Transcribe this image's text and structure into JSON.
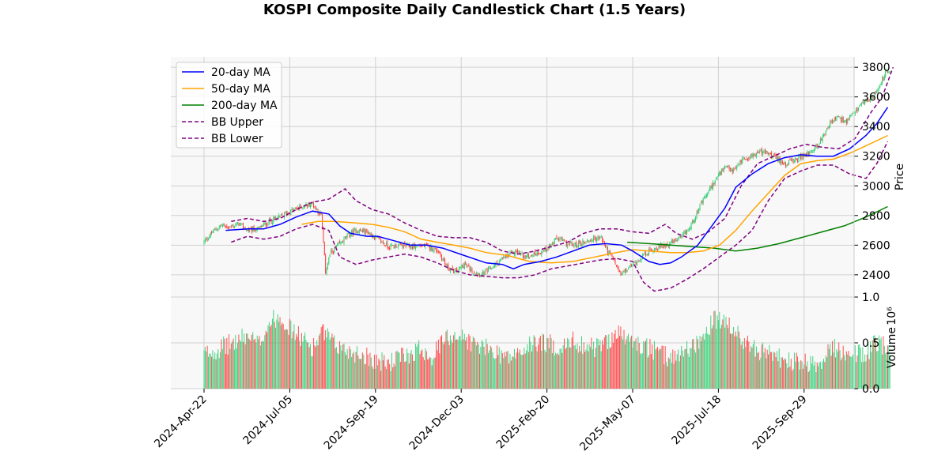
{
  "chart_data": {
    "type": "candlestick",
    "title": "KOSPI Composite Daily Candlestick Chart (1.5 Years)",
    "price_panel": {
      "ylabel": "Price",
      "ylim": [
        2250,
        3870
      ],
      "yticks": [
        2400,
        2600,
        2800,
        3000,
        3200,
        3400,
        3600,
        3800
      ]
    },
    "volume_panel": {
      "ylabel": "Volume",
      "scale_label": "10⁶",
      "ylim": [
        0,
        1.0
      ],
      "yticks": [
        0.0,
        0.5,
        1.0
      ]
    },
    "x_ticks": [
      "2024-Apr-22",
      "2024-Jul-05",
      "2024-Sep-19",
      "2024-Dec-03",
      "2025-Feb-20",
      "2025-May-07",
      "2025-Jul-18",
      "2025-Sep-29"
    ],
    "legend_placement": "top-left",
    "grid": true,
    "colors": {
      "up": "#2ecc71",
      "down": "#ff3b3b",
      "ma20": "#0000ff",
      "ma50": "#ffa500",
      "ma200": "#008000",
      "bb": "#800080",
      "panel_bg": "#f8f8f8",
      "grid": "#d0d0d0"
    },
    "series": [
      {
        "name": "20-day MA",
        "color": "#0000ff",
        "style": "solid"
      },
      {
        "name": "50-day MA",
        "color": "#ffa500",
        "style": "solid"
      },
      {
        "name": "200-day MA",
        "color": "#008000",
        "style": "solid"
      },
      {
        "name": "BB Upper",
        "color": "#800080",
        "style": "dashed"
      },
      {
        "name": "BB Lower",
        "color": "#800080",
        "style": "dashed"
      }
    ],
    "close_path": [
      [
        0,
        2620
      ],
      [
        8,
        2690
      ],
      [
        16,
        2735
      ],
      [
        24,
        2720
      ],
      [
        32,
        2745
      ],
      [
        40,
        2700
      ],
      [
        50,
        2710
      ],
      [
        60,
        2760
      ],
      [
        70,
        2790
      ],
      [
        80,
        2830
      ],
      [
        90,
        2860
      ],
      [
        100,
        2880
      ],
      [
        108,
        2800
      ],
      [
        112,
        2420
      ],
      [
        116,
        2540
      ],
      [
        124,
        2600
      ],
      [
        132,
        2660
      ],
      [
        140,
        2700
      ],
      [
        150,
        2690
      ],
      [
        160,
        2640
      ],
      [
        170,
        2590
      ],
      [
        180,
        2600
      ],
      [
        190,
        2590
      ],
      [
        200,
        2600
      ],
      [
        210,
        2580
      ],
      [
        216,
        2560
      ],
      [
        224,
        2450
      ],
      [
        232,
        2420
      ],
      [
        240,
        2470
      ],
      [
        248,
        2420
      ],
      [
        256,
        2400
      ],
      [
        264,
        2440
      ],
      [
        272,
        2490
      ],
      [
        280,
        2530
      ],
      [
        288,
        2560
      ],
      [
        296,
        2520
      ],
      [
        304,
        2540
      ],
      [
        312,
        2560
      ],
      [
        320,
        2600
      ],
      [
        326,
        2650
      ],
      [
        334,
        2610
      ],
      [
        342,
        2600
      ],
      [
        350,
        2620
      ],
      [
        358,
        2640
      ],
      [
        366,
        2650
      ],
      [
        372,
        2560
      ],
      [
        378,
        2490
      ],
      [
        384,
        2400
      ],
      [
        392,
        2450
      ],
      [
        400,
        2500
      ],
      [
        408,
        2550
      ],
      [
        416,
        2580
      ],
      [
        424,
        2600
      ],
      [
        432,
        2620
      ],
      [
        440,
        2650
      ],
      [
        448,
        2720
      ],
      [
        456,
        2850
      ],
      [
        464,
        2950
      ],
      [
        472,
        3050
      ],
      [
        480,
        3120
      ],
      [
        488,
        3100
      ],
      [
        496,
        3180
      ],
      [
        504,
        3200
      ],
      [
        512,
        3230
      ],
      [
        520,
        3220
      ],
      [
        528,
        3180
      ],
      [
        536,
        3150
      ],
      [
        544,
        3170
      ],
      [
        552,
        3200
      ],
      [
        560,
        3230
      ],
      [
        568,
        3300
      ],
      [
        576,
        3420
      ],
      [
        584,
        3460
      ],
      [
        592,
        3430
      ],
      [
        600,
        3500
      ],
      [
        608,
        3560
      ],
      [
        616,
        3600
      ],
      [
        624,
        3700
      ],
      [
        628,
        3760
      ]
    ],
    "ma20": [
      [
        20,
        2700
      ],
      [
        40,
        2710
      ],
      [
        55,
        2710
      ],
      [
        70,
        2740
      ],
      [
        85,
        2790
      ],
      [
        100,
        2830
      ],
      [
        115,
        2810
      ],
      [
        125,
        2730
      ],
      [
        135,
        2680
      ],
      [
        150,
        2660
      ],
      [
        160,
        2660
      ],
      [
        175,
        2630
      ],
      [
        190,
        2600
      ],
      [
        205,
        2600
      ],
      [
        220,
        2580
      ],
      [
        240,
        2530
      ],
      [
        260,
        2480
      ],
      [
        275,
        2470
      ],
      [
        285,
        2440
      ],
      [
        295,
        2470
      ],
      [
        310,
        2490
      ],
      [
        325,
        2520
      ],
      [
        340,
        2560
      ],
      [
        355,
        2600
      ],
      [
        370,
        2610
      ],
      [
        385,
        2600
      ],
      [
        395,
        2560
      ],
      [
        410,
        2490
      ],
      [
        420,
        2470
      ],
      [
        430,
        2480
      ],
      [
        440,
        2520
      ],
      [
        455,
        2600
      ],
      [
        470,
        2750
      ],
      [
        480,
        2850
      ],
      [
        490,
        2990
      ],
      [
        505,
        3080
      ],
      [
        520,
        3150
      ],
      [
        535,
        3190
      ],
      [
        550,
        3210
      ],
      [
        565,
        3200
      ],
      [
        580,
        3200
      ],
      [
        595,
        3250
      ],
      [
        610,
        3340
      ],
      [
        620,
        3420
      ],
      [
        630,
        3530
      ]
    ],
    "ma50": [
      [
        90,
        2740
      ],
      [
        105,
        2760
      ],
      [
        120,
        2760
      ],
      [
        140,
        2750
      ],
      [
        155,
        2740
      ],
      [
        170,
        2720
      ],
      [
        185,
        2690
      ],
      [
        200,
        2640
      ],
      [
        215,
        2620
      ],
      [
        230,
        2600
      ],
      [
        245,
        2580
      ],
      [
        260,
        2550
      ],
      [
        280,
        2530
      ],
      [
        300,
        2490
      ],
      [
        320,
        2480
      ],
      [
        340,
        2490
      ],
      [
        360,
        2520
      ],
      [
        380,
        2550
      ],
      [
        395,
        2570
      ],
      [
        410,
        2560
      ],
      [
        430,
        2550
      ],
      [
        445,
        2550
      ],
      [
        460,
        2560
      ],
      [
        475,
        2600
      ],
      [
        490,
        2700
      ],
      [
        505,
        2830
      ],
      [
        520,
        2950
      ],
      [
        535,
        3070
      ],
      [
        550,
        3150
      ],
      [
        565,
        3170
      ],
      [
        580,
        3180
      ],
      [
        595,
        3220
      ],
      [
        610,
        3270
      ],
      [
        630,
        3340
      ]
    ],
    "ma200": [
      [
        390,
        2620
      ],
      [
        410,
        2610
      ],
      [
        430,
        2600
      ],
      [
        450,
        2590
      ],
      [
        470,
        2580
      ],
      [
        490,
        2560
      ],
      [
        510,
        2580
      ],
      [
        530,
        2610
      ],
      [
        550,
        2650
      ],
      [
        570,
        2690
      ],
      [
        590,
        2730
      ],
      [
        610,
        2790
      ],
      [
        630,
        2860
      ]
    ],
    "bb_upper": [
      [
        25,
        2760
      ],
      [
        40,
        2780
      ],
      [
        55,
        2760
      ],
      [
        70,
        2780
      ],
      [
        85,
        2840
      ],
      [
        100,
        2890
      ],
      [
        115,
        2910
      ],
      [
        130,
        2980
      ],
      [
        140,
        2900
      ],
      [
        155,
        2840
      ],
      [
        170,
        2810
      ],
      [
        185,
        2750
      ],
      [
        200,
        2700
      ],
      [
        215,
        2660
      ],
      [
        230,
        2650
      ],
      [
        245,
        2650
      ],
      [
        260,
        2620
      ],
      [
        275,
        2560
      ],
      [
        290,
        2540
      ],
      [
        305,
        2560
      ],
      [
        320,
        2590
      ],
      [
        335,
        2620
      ],
      [
        350,
        2680
      ],
      [
        365,
        2710
      ],
      [
        380,
        2710
      ],
      [
        395,
        2690
      ],
      [
        410,
        2680
      ],
      [
        425,
        2740
      ],
      [
        435,
        2680
      ],
      [
        450,
        2640
      ],
      [
        465,
        2690
      ],
      [
        480,
        2780
      ],
      [
        495,
        3000
      ],
      [
        510,
        3150
      ],
      [
        525,
        3200
      ],
      [
        540,
        3250
      ],
      [
        555,
        3280
      ],
      [
        570,
        3260
      ],
      [
        585,
        3250
      ],
      [
        600,
        3320
      ],
      [
        615,
        3500
      ],
      [
        625,
        3600
      ],
      [
        635,
        3800
      ]
    ],
    "bb_lower": [
      [
        25,
        2620
      ],
      [
        40,
        2660
      ],
      [
        55,
        2640
      ],
      [
        70,
        2660
      ],
      [
        85,
        2710
      ],
      [
        100,
        2740
      ],
      [
        115,
        2700
      ],
      [
        125,
        2520
      ],
      [
        140,
        2470
      ],
      [
        155,
        2500
      ],
      [
        170,
        2520
      ],
      [
        185,
        2540
      ],
      [
        200,
        2520
      ],
      [
        215,
        2480
      ],
      [
        230,
        2430
      ],
      [
        245,
        2400
      ],
      [
        260,
        2390
      ],
      [
        275,
        2380
      ],
      [
        290,
        2380
      ],
      [
        305,
        2400
      ],
      [
        320,
        2440
      ],
      [
        335,
        2460
      ],
      [
        350,
        2480
      ],
      [
        365,
        2500
      ],
      [
        380,
        2510
      ],
      [
        395,
        2490
      ],
      [
        405,
        2350
      ],
      [
        415,
        2290
      ],
      [
        430,
        2310
      ],
      [
        445,
        2370
      ],
      [
        460,
        2440
      ],
      [
        475,
        2520
      ],
      [
        490,
        2600
      ],
      [
        505,
        2700
      ],
      [
        520,
        2900
      ],
      [
        535,
        3050
      ],
      [
        550,
        3100
      ],
      [
        565,
        3140
      ],
      [
        580,
        3140
      ],
      [
        595,
        3080
      ],
      [
        610,
        3050
      ],
      [
        620,
        3150
      ],
      [
        630,
        3300
      ]
    ],
    "volume_path": [
      [
        0,
        0.38
      ],
      [
        10,
        0.42
      ],
      [
        20,
        0.47
      ],
      [
        30,
        0.52
      ],
      [
        40,
        0.58
      ],
      [
        50,
        0.48
      ],
      [
        60,
        0.72
      ],
      [
        70,
        0.8
      ],
      [
        80,
        0.65
      ],
      [
        90,
        0.55
      ],
      [
        100,
        0.45
      ],
      [
        110,
        0.62
      ],
      [
        120,
        0.48
      ],
      [
        130,
        0.43
      ],
      [
        140,
        0.39
      ],
      [
        150,
        0.36
      ],
      [
        160,
        0.3
      ],
      [
        170,
        0.28
      ],
      [
        180,
        0.34
      ],
      [
        190,
        0.38
      ],
      [
        200,
        0.45
      ],
      [
        210,
        0.35
      ],
      [
        220,
        0.52
      ],
      [
        230,
        0.6
      ],
      [
        240,
        0.55
      ],
      [
        250,
        0.48
      ],
      [
        260,
        0.44
      ],
      [
        270,
        0.4
      ],
      [
        280,
        0.34
      ],
      [
        290,
        0.38
      ],
      [
        300,
        0.47
      ],
      [
        310,
        0.52
      ],
      [
        320,
        0.48
      ],
      [
        330,
        0.44
      ],
      [
        340,
        0.52
      ],
      [
        350,
        0.48
      ],
      [
        360,
        0.45
      ],
      [
        370,
        0.5
      ],
      [
        380,
        0.62
      ],
      [
        390,
        0.54
      ],
      [
        400,
        0.48
      ],
      [
        410,
        0.44
      ],
      [
        420,
        0.38
      ],
      [
        430,
        0.34
      ],
      [
        440,
        0.4
      ],
      [
        450,
        0.47
      ],
      [
        460,
        0.55
      ],
      [
        470,
        0.75
      ],
      [
        480,
        0.72
      ],
      [
        490,
        0.6
      ],
      [
        500,
        0.5
      ],
      [
        510,
        0.42
      ],
      [
        520,
        0.38
      ],
      [
        530,
        0.33
      ],
      [
        540,
        0.3
      ],
      [
        550,
        0.28
      ],
      [
        560,
        0.26
      ],
      [
        570,
        0.32
      ],
      [
        580,
        0.44
      ],
      [
        590,
        0.4
      ],
      [
        600,
        0.38
      ],
      [
        610,
        0.4
      ],
      [
        620,
        0.5
      ],
      [
        630,
        0.45
      ]
    ]
  }
}
